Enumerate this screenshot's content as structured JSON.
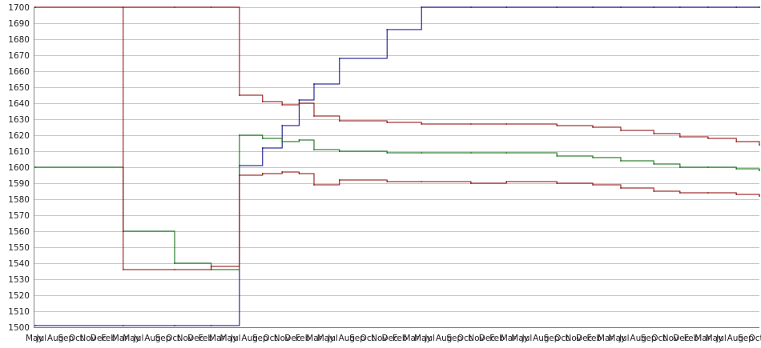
{
  "chart_data": {
    "type": "line",
    "title": "",
    "xlabel": "",
    "ylabel": "",
    "ylim": [
      1500,
      1700
    ],
    "yticks": [
      1500,
      1510,
      1520,
      1530,
      1540,
      1550,
      1560,
      1570,
      1580,
      1590,
      1600,
      1610,
      1620,
      1630,
      1640,
      1650,
      1660,
      1670,
      1680,
      1690,
      1700
    ],
    "grid": "horizontal",
    "legend": "none",
    "xtick_labels": [
      "May",
      "Jul",
      "Aug",
      "Sep",
      "Oct",
      "Nov",
      "Dec",
      "Feb",
      "Mar",
      "May",
      "Jul",
      "Aug",
      "Sep",
      "Oct",
      "Nov",
      "Dec",
      "Feb",
      "Mar",
      "May",
      "Jul",
      "Aug",
      "Sep",
      "Oct",
      "Nov",
      "Dec",
      "Feb",
      "Mar",
      "May",
      "Jul",
      "Aug",
      "Sep",
      "Oct",
      "Nov",
      "Dec",
      "Feb",
      "Mar",
      "May",
      "Jul",
      "Aug",
      "Sep",
      "Oct",
      "Nov",
      "Dec",
      "Feb",
      "Mar",
      "May",
      "Jul",
      "Aug",
      "Sep",
      "Oct",
      "Nov",
      "Dec",
      "Feb",
      "Mar",
      "May",
      "Jul",
      "Aug",
      "Sep",
      "Oct",
      "Nov",
      "Dec",
      "Feb",
      "Mar",
      "May",
      "Jul",
      "Aug",
      "Sep",
      "Oct"
    ],
    "x_index": [
      0,
      1,
      2,
      3,
      4,
      5,
      6,
      7,
      8,
      10,
      15,
      20,
      30,
      40,
      60,
      80,
      100,
      130,
      160,
      200,
      250,
      300
    ],
    "series": [
      {
        "color": "#000080",
        "values": [
          1501,
          1501,
          1501,
          1501,
          1601,
          1612,
          1626,
          1642,
          1652,
          1668,
          1686,
          1700,
          1700,
          1700,
          1700,
          1700,
          1700,
          1700,
          1700,
          1700,
          1700,
          1700
        ]
      },
      {
        "color": "#8b0000",
        "values": [
          1700,
          1700,
          1700,
          1700,
          1645,
          1641,
          1639,
          1640,
          1632,
          1629,
          1628,
          1627,
          1627,
          1627,
          1626,
          1625,
          1623,
          1621,
          1619,
          1618,
          1616,
          1614
        ]
      },
      {
        "color": "#006400",
        "values": [
          1600,
          1560,
          1540,
          1536,
          1620,
          1618,
          1616,
          1617,
          1611,
          1610,
          1609,
          1609,
          1609,
          1609,
          1607,
          1606,
          1604,
          1602,
          1600,
          1600,
          1599,
          1598
        ]
      },
      {
        "color": "#8b0000",
        "values": [
          1700,
          1536,
          1536,
          1538,
          1595,
          1596,
          1597,
          1596,
          1589,
          1592,
          1591,
          1591,
          1590,
          1591,
          1590,
          1589,
          1587,
          1585,
          1584,
          1584,
          1583,
          1582
        ]
      }
    ]
  }
}
